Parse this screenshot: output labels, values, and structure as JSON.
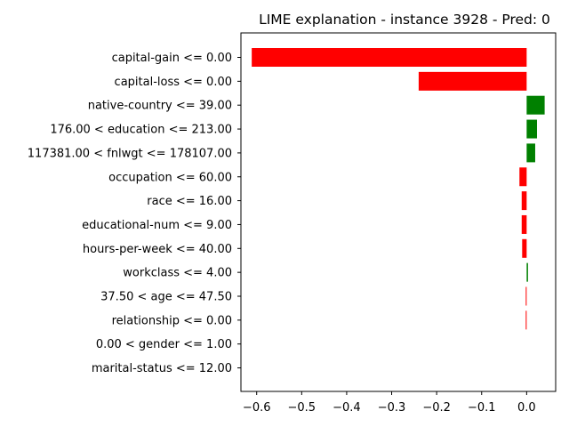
{
  "chart_data": {
    "type": "bar",
    "orientation": "horizontal",
    "title": "LIME explanation - instance 3928 - Pred: 0",
    "xlabel": "",
    "ylabel": "",
    "xlim": [
      -0.635,
      0.0645
    ],
    "grid": false,
    "x_ticks": [
      -0.6,
      -0.5,
      -0.4,
      -0.3,
      -0.2,
      -0.1,
      0.0
    ],
    "x_tick_labels": [
      "−0.6",
      "−0.5",
      "−0.4",
      "−0.3",
      "−0.2",
      "−0.1",
      "0.0"
    ],
    "categories": [
      "capital-gain <= 0.00",
      "capital-loss <= 0.00",
      "native-country <= 39.00",
      "176.00 < education <= 213.00",
      "117381.00 < fnlwgt <= 178107.00",
      "occupation <= 60.00",
      "race <= 16.00",
      "educational-num <= 9.00",
      "hours-per-week <= 40.00",
      "workclass <= 4.00",
      "37.50 < age <= 47.50",
      "relationship <= 0.00",
      "0.00 < gender <= 1.00",
      "marital-status <= 12.00"
    ],
    "values": [
      -0.611,
      -0.24,
      0.04,
      0.023,
      0.019,
      -0.016,
      -0.011,
      -0.011,
      -0.01,
      0.003,
      -0.002,
      -0.002,
      0.0,
      0.0
    ],
    "colors": {
      "positive": "#008000",
      "negative": "#ff0000"
    }
  }
}
